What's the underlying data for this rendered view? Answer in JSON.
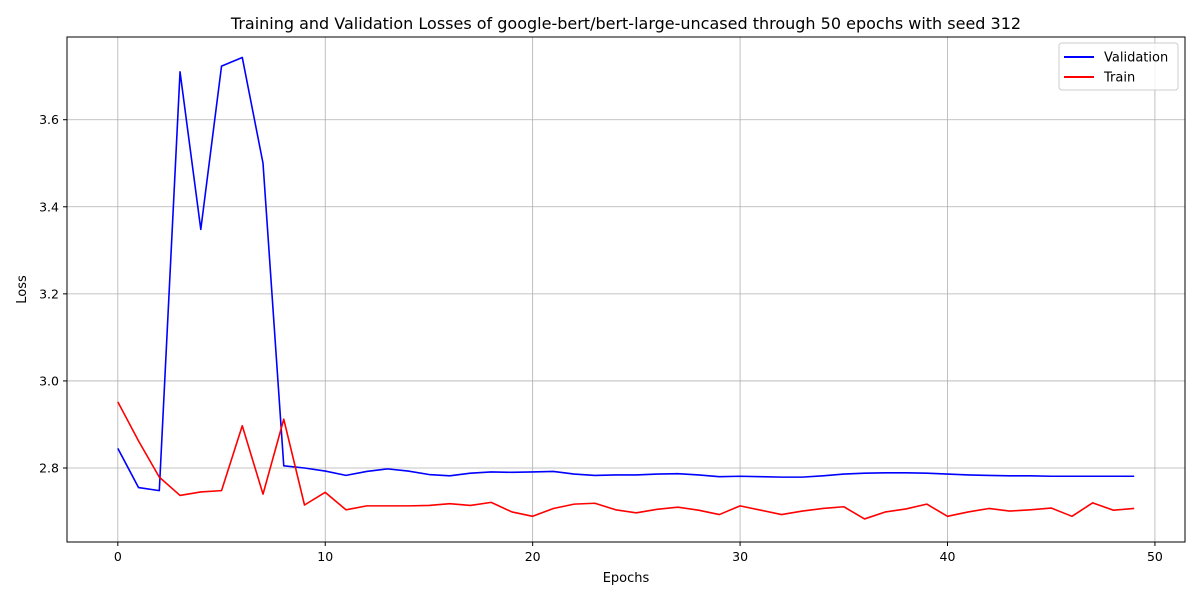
{
  "chart_data": {
    "type": "line",
    "title": "Training and Validation Losses of google-bert/bert-large-uncased through 50 epochs with seed 312",
    "xlabel": "Epochs",
    "ylabel": "Loss",
    "xlim": [
      -2.45,
      51.45
    ],
    "ylim": [
      2.63,
      3.79
    ],
    "xticks": [
      0,
      10,
      20,
      30,
      40,
      50
    ],
    "yticks": [
      2.8,
      3.0,
      3.2,
      3.4,
      3.6
    ],
    "ytick_labels": [
      "2.8",
      "3.0",
      "3.2",
      "3.4",
      "3.6"
    ],
    "grid": true,
    "legend_position": "upper right",
    "x": [
      0,
      1,
      2,
      3,
      4,
      5,
      6,
      7,
      8,
      9,
      10,
      11,
      12,
      13,
      14,
      15,
      16,
      17,
      18,
      19,
      20,
      21,
      22,
      23,
      24,
      25,
      26,
      27,
      28,
      29,
      30,
      31,
      32,
      33,
      34,
      35,
      36,
      37,
      38,
      39,
      40,
      41,
      42,
      43,
      44,
      45,
      46,
      47,
      48,
      49
    ],
    "series": [
      {
        "name": "Validation",
        "color": "#0000ff",
        "values": [
          2.845,
          2.755,
          2.748,
          3.71,
          3.348,
          3.723,
          3.743,
          3.5,
          2.805,
          2.8,
          2.793,
          2.783,
          2.792,
          2.798,
          2.793,
          2.785,
          2.782,
          2.788,
          2.791,
          2.79,
          2.791,
          2.792,
          2.786,
          2.783,
          2.784,
          2.784,
          2.786,
          2.787,
          2.784,
          2.78,
          2.781,
          2.78,
          2.779,
          2.779,
          2.782,
          2.786,
          2.788,
          2.789,
          2.789,
          2.788,
          2.786,
          2.784,
          2.783,
          2.782,
          2.782,
          2.781,
          2.781,
          2.781,
          2.781,
          2.781
        ]
      },
      {
        "name": "Train",
        "color": "#ff0000",
        "values": [
          2.952,
          2.862,
          2.779,
          2.737,
          2.745,
          2.748,
          2.897,
          2.74,
          2.912,
          2.715,
          2.744,
          2.704,
          2.713,
          2.713,
          2.713,
          2.714,
          2.718,
          2.714,
          2.721,
          2.699,
          2.689,
          2.707,
          2.717,
          2.719,
          2.704,
          2.697,
          2.705,
          2.71,
          2.703,
          2.693,
          2.713,
          2.703,
          2.693,
          2.701,
          2.707,
          2.711,
          2.683,
          2.699,
          2.706,
          2.717,
          2.689,
          2.699,
          2.707,
          2.701,
          2.704,
          2.708,
          2.689,
          2.72,
          2.703,
          2.707
        ]
      }
    ]
  }
}
